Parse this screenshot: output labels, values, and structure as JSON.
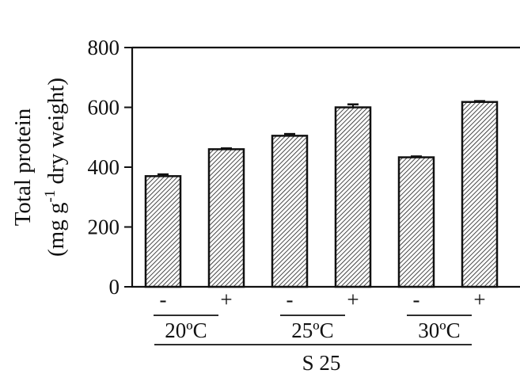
{
  "chart_data": {
    "type": "bar",
    "ylabel_line1": "Total protein",
    "ylabel_line2_pre": "(mg g",
    "ylabel_line2_sup": "-1",
    "ylabel_line2_post": " dry weight)",
    "ylim": [
      0,
      800
    ],
    "yticks": [
      0,
      200,
      400,
      600,
      800
    ],
    "grid": false,
    "categories": [
      "-",
      "+",
      "-",
      "+",
      "-",
      "+"
    ],
    "values": [
      370,
      460,
      505,
      600,
      433,
      618
    ],
    "errors": [
      6,
      3,
      6,
      10,
      3,
      3
    ],
    "groups": [
      {
        "label": "20ºC",
        "bars": [
          0,
          1
        ]
      },
      {
        "label": "25ºC",
        "bars": [
          2,
          3
        ]
      },
      {
        "label": "30ºC",
        "bars": [
          4,
          5
        ]
      }
    ],
    "outer_label": "S 25",
    "bar_fill": "#ffffff",
    "bar_hatch_color": "#1a1a1a"
  }
}
